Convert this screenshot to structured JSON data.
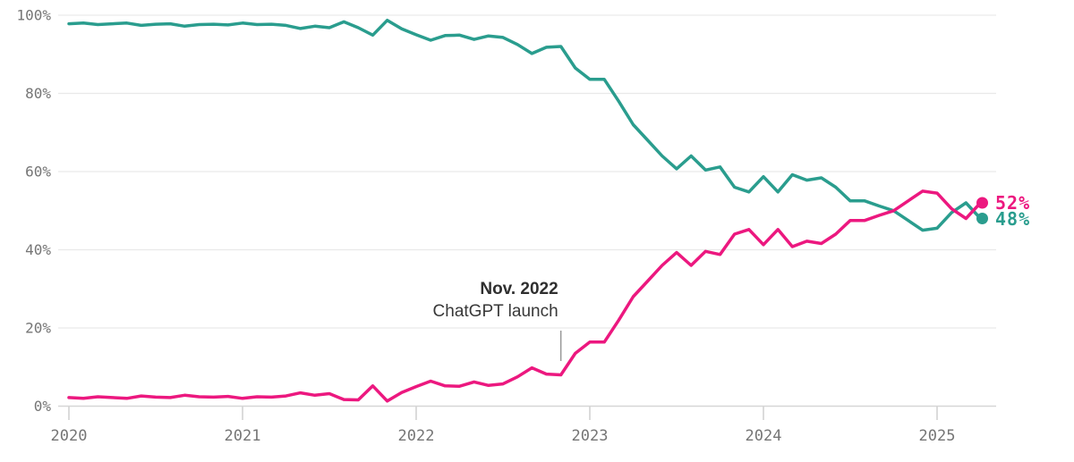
{
  "page": {
    "background_color": "#ffffff"
  },
  "chart_data": {
    "type": "line",
    "title": "",
    "x_start_month": "2020-01",
    "x_end_month": "2025-04",
    "points_per_series": 64,
    "grid": true,
    "ylim": [
      0,
      100
    ],
    "x_axis": {
      "ticks": [
        {
          "label": "2020",
          "month_index": 0
        },
        {
          "label": "2021",
          "month_index": 12
        },
        {
          "label": "2022",
          "month_index": 24
        },
        {
          "label": "2023",
          "month_index": 36
        },
        {
          "label": "2024",
          "month_index": 48
        },
        {
          "label": "2025",
          "month_index": 60
        }
      ]
    },
    "y_axis": {
      "ticks": [
        {
          "label": "0%",
          "value": 0
        },
        {
          "label": "20%",
          "value": 20
        },
        {
          "label": "40%",
          "value": 40
        },
        {
          "label": "60%",
          "value": 60
        },
        {
          "label": "80%",
          "value": 80
        },
        {
          "label": "100%",
          "value": 100
        }
      ]
    },
    "annotation": {
      "line1": "Nov. 2022",
      "line2": "ChatGPT launch",
      "month_index": 34,
      "pointer_line_color": "#999999"
    },
    "series": [
      {
        "name": "teal",
        "color": "#2a9d8e",
        "end_label": "48%",
        "end_value": 48,
        "values": [
          97.8,
          98.0,
          97.6,
          97.8,
          98.0,
          97.4,
          97.7,
          97.8,
          97.2,
          97.6,
          97.7,
          97.5,
          98.0,
          97.6,
          97.7,
          97.4,
          96.6,
          97.2,
          96.8,
          98.3,
          96.8,
          94.9,
          98.7,
          96.5,
          95.0,
          93.6,
          94.8,
          94.9,
          93.8,
          94.7,
          94.3,
          92.5,
          90.2,
          91.8,
          92.0,
          86.5,
          83.6,
          83.6,
          78.0,
          72.0,
          68.0,
          64.0,
          60.7,
          64.0,
          60.4,
          61.2,
          56.0,
          54.8,
          58.7,
          54.8,
          59.2,
          57.8,
          58.4,
          56.0,
          52.5,
          52.5,
          51.2,
          50.0,
          47.5,
          45.0,
          45.5,
          49.5,
          52.0,
          48.0
        ]
      },
      {
        "name": "pink",
        "color": "#ec187f",
        "end_label": "52%",
        "end_value": 52,
        "values": [
          2.2,
          2.0,
          2.4,
          2.2,
          2.0,
          2.6,
          2.3,
          2.2,
          2.8,
          2.4,
          2.3,
          2.5,
          2.0,
          2.4,
          2.3,
          2.6,
          3.4,
          2.8,
          3.2,
          1.7,
          1.6,
          5.2,
          1.3,
          3.5,
          5.0,
          6.4,
          5.2,
          5.1,
          6.2,
          5.3,
          5.7,
          7.5,
          9.8,
          8.2,
          8.0,
          13.5,
          16.4,
          16.4,
          22.0,
          28.0,
          32.0,
          36.0,
          39.3,
          36.0,
          39.6,
          38.8,
          44.0,
          45.2,
          41.3,
          45.2,
          40.8,
          42.2,
          41.6,
          44.0,
          47.5,
          47.5,
          48.8,
          50.0,
          52.5,
          55.0,
          54.5,
          50.5,
          48.0,
          52.0
        ]
      }
    ],
    "style": {
      "gridline_color": "#e9e9e9",
      "baseline_color": "#d6d6d6",
      "tick_color": "#cfcfcf",
      "axis_text_color": "#757575",
      "line_width": 3.5,
      "end_dot_radius": 6.5
    }
  }
}
